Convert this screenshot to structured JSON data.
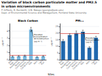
{
  "title": "Variation of black carbon particulate matter and PM2.5 in urban microenvironments",
  "subtitles": [
    "P. DiPaolo, B. Beckwith, U.N. Nwogu (georgio@pdx.edu)",
    "Dept. of Environmental Science and Management, Portland State University"
  ],
  "xlabel": "Sites",
  "chart_data": [
    {
      "type": "bar",
      "title": "Black Carbon",
      "ylabel": "µg m⁻³",
      "categories": [
        "Bike\nPath",
        "Residential\nStreet",
        "Commercial\nDistrict",
        "Construction\nSite",
        "Park",
        "Light\nRail"
      ],
      "values": [
        0.45,
        0.5,
        0.55,
        4.2,
        0.4,
        0.5
      ],
      "errors": [
        0.08,
        0.09,
        0.1,
        0.3,
        0.07,
        0.08
      ],
      "color": "#7ab8e0",
      "ylim": [
        0,
        5.0
      ],
      "yticks": [
        0,
        1,
        2,
        3,
        4
      ],
      "grid": true,
      "hline": {
        "value": 0.65,
        "color": "#d9534f"
      },
      "annotation": {
        "text": "Elevated\nConcentration\nAt Construction\n(µg m⁻³)",
        "category": "Construction\nSite",
        "value": 4.2
      }
    },
    {
      "type": "bar",
      "title": "PM₂.₅",
      "ylabel": "µg m⁻³",
      "categories": [
        "Bike\nPath",
        "Residential\nStreet",
        "Commercial\nDistrict",
        "Construction\nSite",
        "Park",
        "Light\nRail"
      ],
      "values": [
        14.0,
        18.5,
        20.0,
        21.0,
        9.0,
        16.5
      ],
      "errors": [
        1.2,
        1.0,
        1.5,
        1.2,
        0.8,
        1.1
      ],
      "color": "#2068ae",
      "ylim": [
        0,
        27
      ],
      "yticks": [
        0,
        5,
        10,
        15,
        20,
        25
      ],
      "grid": true,
      "hline": {
        "value": 19.5,
        "color": "#d9534f"
      },
      "annotation": {
        "text": "Elevated\nConcentration\n(µg m⁻³)",
        "category": "Construction\nSite",
        "value": 21.0
      }
    }
  ]
}
